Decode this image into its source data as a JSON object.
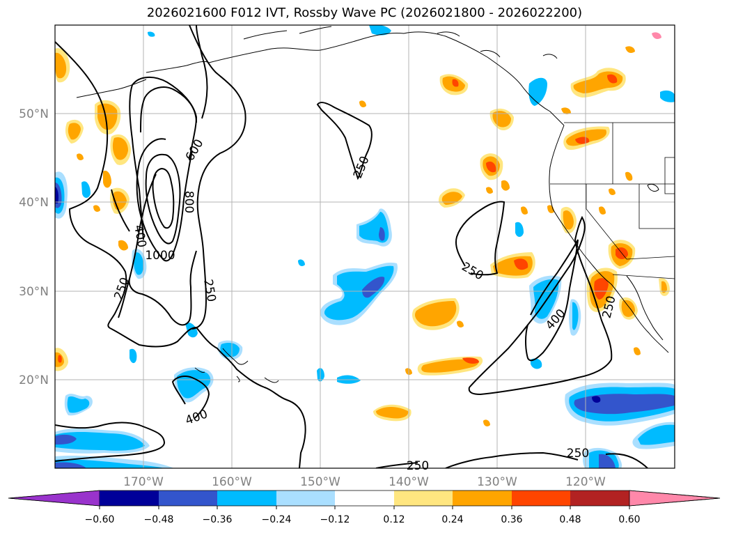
{
  "title": "2026021600 F012 IVT, Rossby Wave PC (2026021800 - 2026022200)",
  "map": {
    "lat_labels": [
      "50°N",
      "40°N",
      "30°N",
      "20°N"
    ],
    "lon_labels": [
      "170°W",
      "160°W",
      "150°W",
      "140°W",
      "130°W",
      "120°W"
    ],
    "contour_labels": [
      "600",
      "800",
      "1000",
      "400",
      "250",
      "250",
      "250",
      "400",
      "250",
      "400",
      "250",
      "250",
      "250"
    ]
  },
  "colorbar": {
    "ticks": [
      "−0.60",
      "−0.48",
      "−0.36",
      "−0.24",
      "−0.12",
      "0.12",
      "0.24",
      "0.36",
      "0.48",
      "0.60"
    ],
    "colors": [
      "#9933cc",
      "#000099",
      "#3355cc",
      "#00bbff",
      "#aadfff",
      "#ffffff",
      "#ffe680",
      "#ffa500",
      "#ff4500",
      "#b22222",
      "#ff88aa"
    ]
  },
  "chart_data": {
    "type": "map",
    "title": "2026021600 F012 IVT, Rossby Wave PC (2026021800 - 2026022200)",
    "lat_range": [
      10,
      60
    ],
    "lon_range": [
      -180,
      -110
    ],
    "lat_ticks": [
      50,
      40,
      30,
      20
    ],
    "lon_ticks": [
      -170,
      -160,
      -150,
      -140,
      -130,
      -120
    ],
    "ivt_contour_levels": [
      250,
      400,
      600,
      800,
      1000
    ],
    "colorbar_levels": [
      -0.6,
      -0.48,
      -0.36,
      -0.24,
      -0.12,
      0.12,
      0.24,
      0.36,
      0.48,
      0.6
    ],
    "colormap_below": [
      "#9933cc",
      "#000099",
      "#3355cc",
      "#00bbff",
      "#aadfff"
    ],
    "colormap_above": [
      "#ffe680",
      "#ffa500",
      "#ff4500",
      "#b22222",
      "#ff88aa"
    ]
  }
}
